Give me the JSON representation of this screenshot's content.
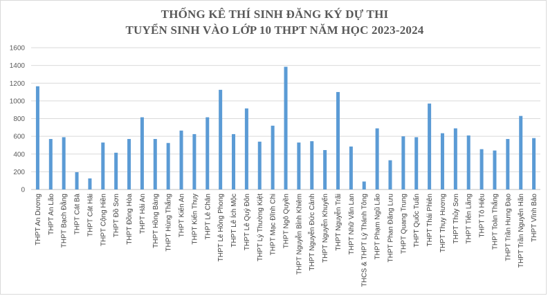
{
  "chart_data": {
    "type": "bar",
    "title": [
      "THỐNG KÊ THÍ SINH ĐĂNG KÝ DỰ THI",
      "TUYỂN SINH VÀO LỚP 10 THPT NĂM HỌC 2023-2024"
    ],
    "xlabel": "",
    "ylabel": "",
    "ylim": [
      0,
      1600
    ],
    "yticks": [
      0,
      200,
      400,
      600,
      800,
      1000,
      1200,
      1400,
      1600
    ],
    "grid": true,
    "bar_color": "#5b9bd5",
    "categories": [
      "THPT An Dương",
      "THPT An Lão",
      "THPT Bạch Đằng",
      "THPT Cát Bà",
      "THPT Cát Hải",
      "THPT Cộng Hiền",
      "THPT Đồ Sơn",
      "THPT Đồng Hòa",
      "THPT Hải An",
      "THPT Hồng Bàng",
      "THPT Hùng Thắng",
      "THPT Kiến An",
      "THPT Kiến Thụy",
      "THPT Lê Chân",
      "THPT Lê Hồng Phong",
      "THPT Lê Ích Mộc",
      "THPT Lê Quý Đôn",
      "THPT Lý Thường Kiệt",
      "THPT Mạc Đĩnh Chi",
      "THPT Ngô Quyền",
      "THPT Nguyễn Bỉnh Khiêm",
      "THPT Nguyễn Đức Cảnh",
      "THPT Nguyễn Khuyến",
      "THPT Nguyễn Trãi",
      "THPT Nhữ Văn Lan",
      "THCS & THPT Lý Thánh Tông",
      "THPT Phạm Ngũ Lão",
      "THPT Phan Đăng Lưu",
      "THPT Quang Trung",
      "THPT Quốc Tuấn",
      "THPT Thái Phiên",
      "THPT Thụy Hương",
      "THPT Thủy Sơn",
      "THPT Tiên Lãng",
      "THPT Tô Hiệu",
      "THPT Toàn Thắng",
      "THPT Trần Hưng Đạo",
      "THPT Trần Nguyên Hãn",
      "THPT Vĩnh Bảo"
    ],
    "values": [
      1165,
      570,
      590,
      195,
      125,
      530,
      415,
      570,
      815,
      570,
      525,
      665,
      625,
      815,
      1125,
      625,
      915,
      540,
      720,
      1385,
      530,
      545,
      445,
      1100,
      485,
      90,
      690,
      330,
      600,
      590,
      970,
      635,
      690,
      610,
      455,
      440,
      570,
      830,
      580
    ]
  }
}
